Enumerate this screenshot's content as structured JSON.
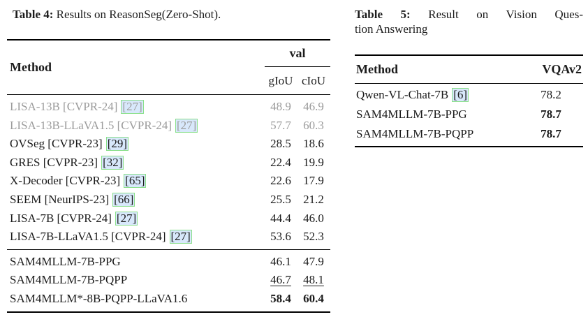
{
  "colors": {
    "text": "#1b1b1b",
    "muted_row_text": "#9b9b9b",
    "citation_box_fill": "#d8e8fb",
    "citation_box_border": "#8be08b",
    "rule": "#000000"
  },
  "table4": {
    "caption_label": "Table 4:",
    "caption_text": "Results on ReasonSeg(Zero-Shot).",
    "header": {
      "method": "Method",
      "group": "val",
      "col1": "gIoU",
      "col2": "cIoU"
    },
    "baseline_rows": [
      {
        "method": "LISA-13B [CVPR-24]",
        "cite": "[27]",
        "giou": "48.9",
        "ciou": "46.9"
      },
      {
        "method": "LISA-13B-LLaVA1.5 [CVPR-24]",
        "cite": "[27]",
        "giou": "57.7",
        "ciou": "60.3"
      },
      {
        "method": "OVSeg [CVPR-23]",
        "cite": "[29]",
        "giou": "28.5",
        "ciou": "18.6"
      },
      {
        "method": "GRES [CVPR-23]",
        "cite": "[32]",
        "giou": "22.4",
        "ciou": "19.9"
      },
      {
        "method": "X-Decoder [CVPR-23]",
        "cite": "[65]",
        "giou": "22.6",
        "ciou": "17.9"
      },
      {
        "method": "SEEM [NeurIPS-23]",
        "cite": "[66]",
        "giou": "25.5",
        "ciou": "21.2"
      },
      {
        "method": "LISA-7B [CVPR-24]",
        "cite": "[27]",
        "giou": "44.4",
        "ciou": "46.0"
      },
      {
        "method": "LISA-7B-LLaVA1.5 [CVPR-24]",
        "cite": "[27]",
        "giou": "53.6",
        "ciou": "52.3"
      }
    ],
    "ours_rows": [
      {
        "method": "SAM4MLLM-7B-PPG",
        "giou": "46.1",
        "ciou": "47.9"
      },
      {
        "method": "SAM4MLLM-7B-PQPP",
        "giou": "46.7",
        "ciou": "48.1"
      },
      {
        "method": "SAM4MLLM*-8B-PQPP-LLaVA1.6",
        "giou": "58.4",
        "ciou": "60.4"
      }
    ]
  },
  "table5": {
    "caption_label": "Table 5:",
    "caption_line1_text": "Result on Vision Ques-",
    "caption_line2_text": "tion Answering",
    "header": {
      "method": "Method",
      "col1": "VQAv2"
    },
    "rows": [
      {
        "method": "Qwen-VL-Chat-7B",
        "cite": "[6]",
        "value": "78.2"
      },
      {
        "method": "SAM4MLLM-7B-PPG",
        "cite": "",
        "value": "78.7"
      },
      {
        "method": "SAM4MLLM-7B-PQPP",
        "cite": "",
        "value": "78.7"
      }
    ]
  }
}
